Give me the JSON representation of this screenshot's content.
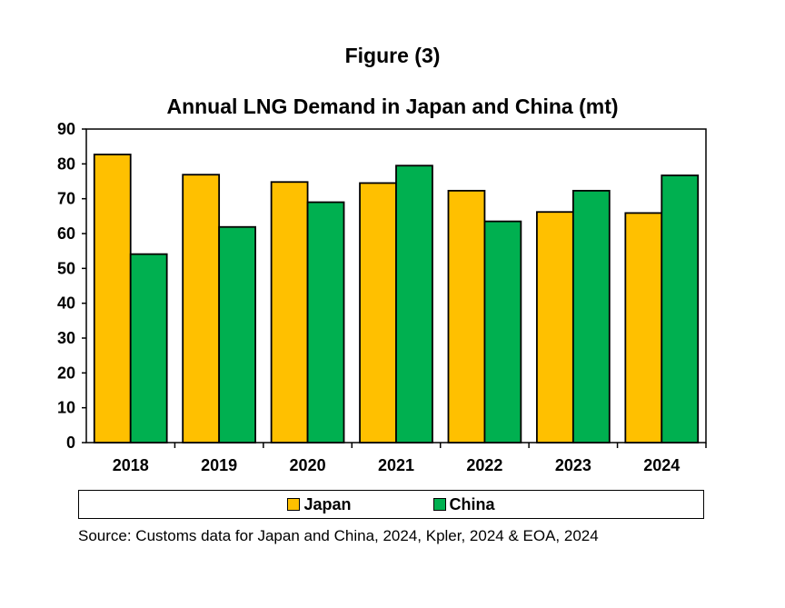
{
  "chart_data": {
    "type": "bar",
    "figure_label": "Figure (3)",
    "title": "Annual LNG Demand in Japan and China (mt)",
    "categories": [
      "2018",
      "2019",
      "2020",
      "2021",
      "2022",
      "2023",
      "2024"
    ],
    "series": [
      {
        "name": "Japan",
        "color": "#FFC000",
        "values": [
          82.7,
          76.9,
          74.8,
          74.5,
          72.3,
          66.2,
          65.9
        ]
      },
      {
        "name": "China",
        "color": "#00B050",
        "values": [
          54.1,
          61.9,
          69.0,
          79.5,
          63.5,
          72.3,
          76.7
        ]
      }
    ],
    "ylim": [
      0,
      90
    ],
    "yticks": [
      "0",
      "10",
      "20",
      "30",
      "40",
      "50",
      "60",
      "70",
      "80",
      "90"
    ],
    "grid": false,
    "legend": "bottom",
    "source": "Source: Customs data for Japan and China, 2024,  Kpler, 2024 & EOA, 2024"
  }
}
